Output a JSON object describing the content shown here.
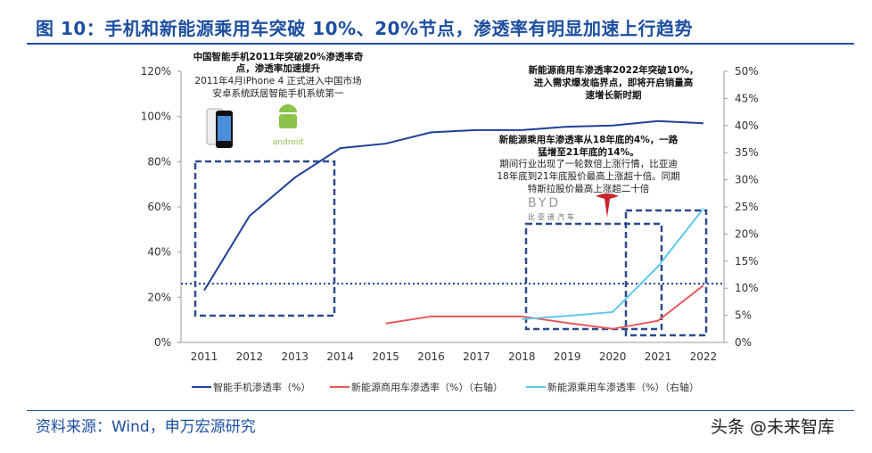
{
  "title": "图 10：手机和新能源乘用车突破 10%、20%节点，渗透率有明显加速上行趋势",
  "source": "资料来源：Wind，申万宏源研究",
  "watermark": "头条 @未来智库",
  "chart_data": {
    "type": "line",
    "categories": [
      "2011",
      "2012",
      "2013",
      "2014",
      "2015",
      "2016",
      "2017",
      "2018",
      "2019",
      "2020",
      "2021",
      "2022"
    ],
    "ylim_left": [
      0,
      120
    ],
    "yticks_left": [
      "0%",
      "20%",
      "40%",
      "60%",
      "80%",
      "100%",
      "120%"
    ],
    "ylim_right": [
      0,
      50
    ],
    "yticks_right": [
      "0%",
      "5%",
      "10%",
      "15%",
      "20%",
      "25%",
      "30%",
      "35%",
      "40%",
      "45%",
      "50%"
    ],
    "grid": false,
    "legend_placement": "bottom",
    "series": [
      {
        "name": "智能手机渗透率（%）",
        "axis": "left",
        "color": "#1f3f99",
        "values": [
          23,
          56,
          73,
          86,
          88,
          93,
          94,
          94,
          95.5,
          96,
          98,
          97
        ]
      },
      {
        "name": "新能源商用车渗透率（%）（右轴）",
        "axis": "right",
        "color": "#e8585b",
        "values": [
          null,
          null,
          null,
          null,
          3.5,
          4.8,
          4.8,
          4.8,
          3.6,
          2.5,
          4,
          10.5
        ]
      },
      {
        "name": "新能源乘用车渗透率（%）（右轴）",
        "axis": "right",
        "color": "#5ec8ee",
        "values": [
          null,
          null,
          null,
          null,
          null,
          null,
          null,
          4.3,
          4.9,
          5.6,
          14,
          24.7
        ]
      }
    ],
    "reference_line": {
      "axis": "left",
      "value": 26,
      "style": "dotted"
    },
    "annotations": {
      "phone_bold": [
        "中国智能手机2011年突破20%渗透率奇",
        "点，渗透率加速提升"
      ],
      "phone": [
        "2011年4月iPhone 4 正式进入中国市场",
        "安卓系统跃居智能手机系统第一"
      ],
      "android_logo": "android",
      "commercial_bold": [
        "新能源商用车渗透率2022年突破10%，",
        "进入需求爆发临界点，即将开启销量高",
        "速增长新时期"
      ],
      "passenger_bold": [
        "新能源乘用车渗透率从18年底的4%，一路",
        "猛增至21年底的14%。"
      ],
      "passenger": [
        "期间行业出现了一轮数倍上涨行情，比亚迪",
        "18年底到21年底股价最高上涨超十倍。同期",
        "特斯拉股价最高上涨超二十倍"
      ],
      "byd_logo": "比亚迪汽车"
    }
  }
}
